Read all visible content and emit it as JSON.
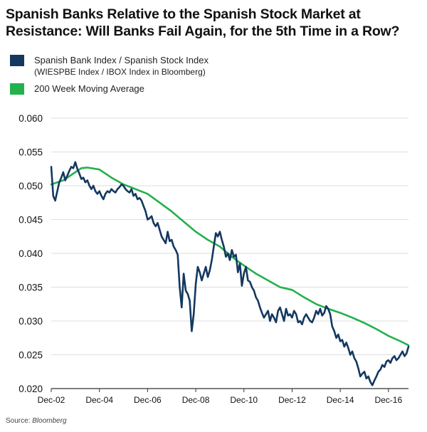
{
  "header": {
    "title": "Spanish Banks Relative to the Spanish Stock Market at Resistance: Will Banks Fail Again, for the 5th Time in a Row?"
  },
  "legend": {
    "item1_label": "Spanish Bank Index / Spanish Stock Index",
    "item1_sub": "(WIESPBE Index / IBOX Index in Bloomberg)",
    "item2_label": "200 Week Moving Average"
  },
  "source_label": "Source:",
  "source_value": "Bloomberg",
  "colors": {
    "ratio": "#14385f",
    "ma": "#22b14c",
    "grid": "#dddddd"
  },
  "chart_data": {
    "type": "line",
    "title": "Spanish Banks Relative to the Spanish Stock Market at Resistance: Will Banks Fail Again, for the 5th Time in a Row?",
    "xlabel": "",
    "ylabel": "",
    "ylim": [
      0.02,
      0.06
    ],
    "xlim": [
      "2002-12",
      "2017-10"
    ],
    "y_ticks": [
      "0.020",
      "0.025",
      "0.030",
      "0.035",
      "0.040",
      "0.045",
      "0.050",
      "0.055",
      "0.060"
    ],
    "x_ticks": [
      "Dec-02",
      "Dec-04",
      "Dec-06",
      "Dec-08",
      "Dec-10",
      "Dec-12",
      "Dec-14",
      "Dec-16"
    ],
    "grid": "horizontal",
    "legend_position": "top-left",
    "series": [
      {
        "name": "Spanish Bank Index / Spanish Stock Index",
        "color": "#14385f",
        "x": [
          "2002-12",
          "2003-01",
          "2003-02",
          "2003-03",
          "2003-04",
          "2003-05",
          "2003-06",
          "2003-07",
          "2003-08",
          "2003-09",
          "2003-10",
          "2003-11",
          "2003-12",
          "2004-01",
          "2004-02",
          "2004-03",
          "2004-04",
          "2004-05",
          "2004-06",
          "2004-07",
          "2004-08",
          "2004-09",
          "2004-10",
          "2004-11",
          "2004-12",
          "2005-01",
          "2005-02",
          "2005-03",
          "2005-04",
          "2005-05",
          "2005-06",
          "2005-07",
          "2005-08",
          "2005-09",
          "2005-10",
          "2005-11",
          "2005-12",
          "2006-01",
          "2006-02",
          "2006-03",
          "2006-04",
          "2006-05",
          "2006-06",
          "2006-07",
          "2006-08",
          "2006-09",
          "2006-10",
          "2006-11",
          "2006-12",
          "2007-01",
          "2007-02",
          "2007-03",
          "2007-04",
          "2007-05",
          "2007-06",
          "2007-07",
          "2007-08",
          "2007-09",
          "2007-10",
          "2007-11",
          "2007-12",
          "2008-01",
          "2008-02",
          "2008-03",
          "2008-04",
          "2008-05",
          "2008-06",
          "2008-07",
          "2008-08",
          "2008-09",
          "2008-10",
          "2008-11",
          "2008-12",
          "2009-01",
          "2009-02",
          "2009-03",
          "2009-04",
          "2009-05",
          "2009-06",
          "2009-07",
          "2009-08",
          "2009-09",
          "2009-10",
          "2009-11",
          "2009-12",
          "2010-01",
          "2010-02",
          "2010-03",
          "2010-04",
          "2010-05",
          "2010-06",
          "2010-07",
          "2010-08",
          "2010-09",
          "2010-10",
          "2010-11",
          "2010-12",
          "2011-01",
          "2011-02",
          "2011-03",
          "2011-04",
          "2011-05",
          "2011-06",
          "2011-07",
          "2011-08",
          "2011-09",
          "2011-10",
          "2011-11",
          "2011-12",
          "2012-01",
          "2012-02",
          "2012-03",
          "2012-04",
          "2012-05",
          "2012-06",
          "2012-07",
          "2012-08",
          "2012-09",
          "2012-10",
          "2012-11",
          "2012-12",
          "2013-01",
          "2013-02",
          "2013-03",
          "2013-04",
          "2013-05",
          "2013-06",
          "2013-07",
          "2013-08",
          "2013-09",
          "2013-10",
          "2013-11",
          "2013-12",
          "2014-01",
          "2014-02",
          "2014-03",
          "2014-04",
          "2014-05",
          "2014-06",
          "2014-07",
          "2014-08",
          "2014-09",
          "2014-10",
          "2014-11",
          "2014-12",
          "2015-01",
          "2015-02",
          "2015-03",
          "2015-04",
          "2015-05",
          "2015-06",
          "2015-07",
          "2015-08",
          "2015-09",
          "2015-10",
          "2015-11",
          "2015-12",
          "2016-01",
          "2016-02",
          "2016-03",
          "2016-04",
          "2016-05",
          "2016-06",
          "2016-07",
          "2016-08",
          "2016-09",
          "2016-10",
          "2016-11",
          "2016-12",
          "2017-01",
          "2017-02",
          "2017-03",
          "2017-04",
          "2017-05",
          "2017-06",
          "2017-07",
          "2017-08",
          "2017-09",
          "2017-10"
        ],
        "values": [
          0.0528,
          0.0485,
          0.0478,
          0.0492,
          0.0505,
          0.0512,
          0.052,
          0.0508,
          0.0515,
          0.0522,
          0.0528,
          0.0526,
          0.0535,
          0.0525,
          0.0518,
          0.051,
          0.0512,
          0.0505,
          0.0508,
          0.05,
          0.0495,
          0.05,
          0.0492,
          0.0488,
          0.0492,
          0.0485,
          0.048,
          0.0488,
          0.0492,
          0.049,
          0.0495,
          0.0492,
          0.049,
          0.0495,
          0.0498,
          0.0502,
          0.05,
          0.0495,
          0.0492,
          0.049,
          0.0495,
          0.0485,
          0.0488,
          0.048,
          0.0482,
          0.0478,
          0.047,
          0.0462,
          0.045,
          0.0452,
          0.0455,
          0.0445,
          0.044,
          0.0445,
          0.0435,
          0.0425,
          0.042,
          0.0415,
          0.0432,
          0.0418,
          0.042,
          0.041,
          0.0405,
          0.0398,
          0.035,
          0.032,
          0.037,
          0.0345,
          0.034,
          0.033,
          0.0285,
          0.031,
          0.0355,
          0.038,
          0.0372,
          0.036,
          0.037,
          0.038,
          0.0365,
          0.0375,
          0.039,
          0.041,
          0.043,
          0.0425,
          0.0432,
          0.042,
          0.041,
          0.0395,
          0.04,
          0.039,
          0.0405,
          0.0395,
          0.0398,
          0.0372,
          0.0385,
          0.0352,
          0.037,
          0.038,
          0.036,
          0.0358,
          0.035,
          0.0345,
          0.0335,
          0.033,
          0.032,
          0.0312,
          0.0305,
          0.031,
          0.0315,
          0.03,
          0.031,
          0.0305,
          0.0298,
          0.0315,
          0.032,
          0.031,
          0.03,
          0.0318,
          0.0308,
          0.031,
          0.0305,
          0.0315,
          0.031,
          0.0298,
          0.03,
          0.0295,
          0.0305,
          0.031,
          0.0305,
          0.03,
          0.0298,
          0.0305,
          0.0315,
          0.031,
          0.0318,
          0.0308,
          0.0312,
          0.0322,
          0.0318,
          0.031,
          0.0292,
          0.0285,
          0.0275,
          0.028,
          0.027,
          0.0272,
          0.0262,
          0.0268,
          0.026,
          0.025,
          0.0255,
          0.0245,
          0.024,
          0.023,
          0.0218,
          0.0222,
          0.0225,
          0.0215,
          0.0218,
          0.021,
          0.0205,
          0.0212,
          0.0218,
          0.0225,
          0.0228,
          0.0235,
          0.0232,
          0.024,
          0.0242,
          0.0238,
          0.0245,
          0.0248,
          0.0242,
          0.0245,
          0.025,
          0.0255,
          0.0248,
          0.0252,
          0.0262
        ]
      },
      {
        "name": "200 Week Moving Average",
        "color": "#22b14c",
        "x": [
          "2002-12",
          "2003-06",
          "2003-12",
          "2004-03",
          "2004-06",
          "2004-12",
          "2005-06",
          "2005-12",
          "2006-06",
          "2006-12",
          "2007-06",
          "2007-12",
          "2008-06",
          "2008-12",
          "2009-06",
          "2009-12",
          "2010-06",
          "2010-12",
          "2011-06",
          "2011-12",
          "2012-06",
          "2012-12",
          "2013-06",
          "2013-12",
          "2014-06",
          "2014-12",
          "2015-06",
          "2015-12",
          "2016-06",
          "2016-12",
          "2017-06",
          "2017-10"
        ],
        "values": [
          0.0502,
          0.0508,
          0.052,
          0.0526,
          0.0527,
          0.0524,
          0.0512,
          0.0502,
          0.0495,
          0.0488,
          0.0475,
          0.0462,
          0.0447,
          0.0432,
          0.042,
          0.041,
          0.0395,
          0.0382,
          0.037,
          0.036,
          0.035,
          0.0346,
          0.0335,
          0.0325,
          0.0318,
          0.0312,
          0.0305,
          0.0297,
          0.0288,
          0.0278,
          0.027,
          0.0264
        ]
      }
    ]
  }
}
